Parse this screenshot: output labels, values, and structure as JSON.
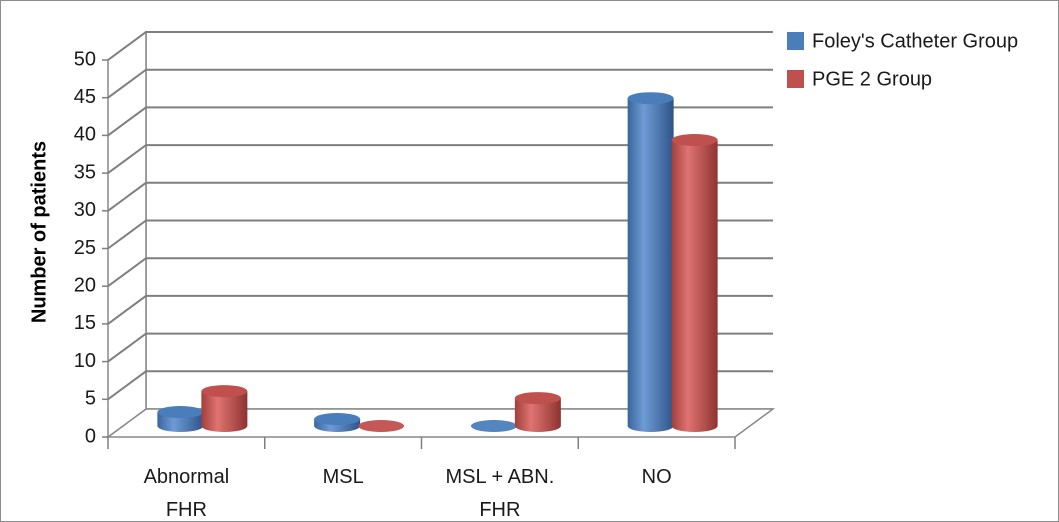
{
  "chart_data": {
    "type": "bar",
    "style": "3d-cylinder",
    "categories": [
      [
        "Abnormal",
        "FHR"
      ],
      [
        "MSL"
      ],
      [
        "MSL + ABN.",
        "FHR"
      ],
      [
        "NO"
      ]
    ],
    "series": [
      {
        "name": "Foley's Catheter Group",
        "color": "#4a7ebb",
        "values": [
          2,
          1,
          0,
          47
        ]
      },
      {
        "name": "PGE 2 Group",
        "color": "#c0504d",
        "values": [
          5,
          0,
          4,
          41
        ]
      }
    ],
    "ylabel": "Number of patients",
    "ylim": [
      0,
      50
    ],
    "yticks": [
      0,
      5,
      10,
      15,
      20,
      25,
      30,
      35,
      40,
      45,
      50
    ],
    "grid": true,
    "legend_position": "top-right"
  }
}
